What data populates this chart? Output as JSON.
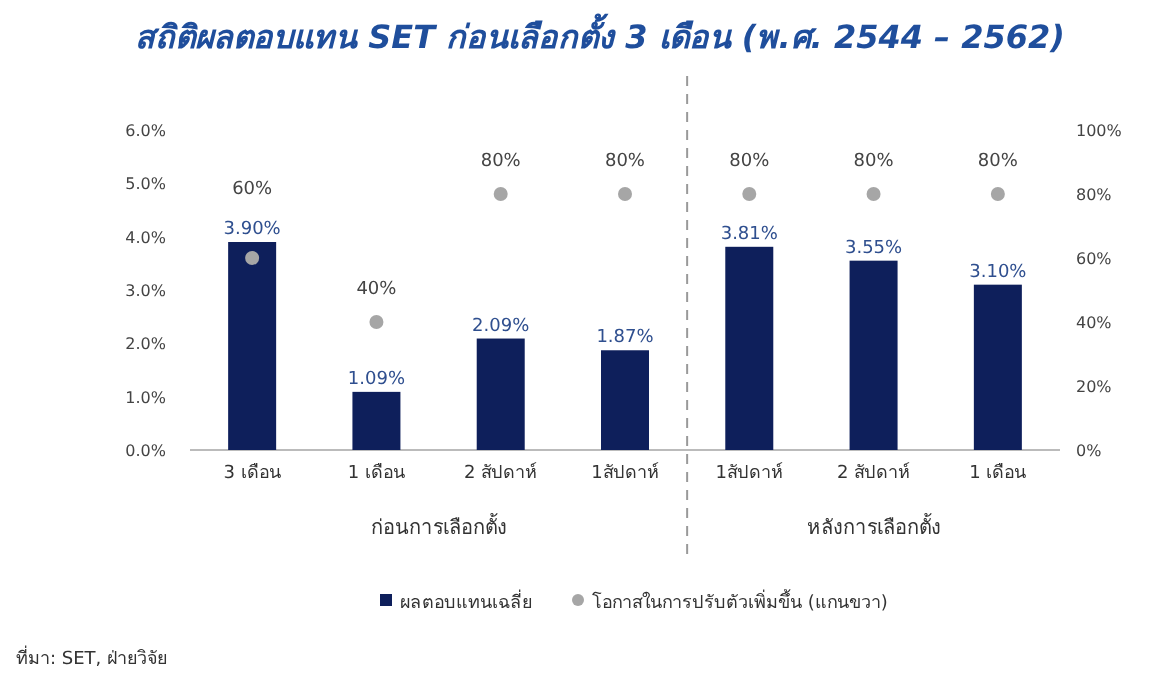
{
  "chart_data": {
    "type": "bar",
    "title": "สถิติผลตอบแทน SET ก่อนเลือกตั้ง 3 เดือน (พ.ศ. 2544 – 2562)",
    "categories": [
      "3 เดือน",
      "1 เดือน",
      "2 สัปดาห์",
      "1สัปดาห์",
      "1สัปดาห์",
      "2 สัปดาห์",
      "1 เดือน"
    ],
    "series": [
      {
        "name": "ผลตอบแทนเฉลี่ย",
        "type": "bar",
        "color": "#0e1f5b",
        "values": [
          3.9,
          1.09,
          2.09,
          1.87,
          3.81,
          3.55,
          3.1
        ],
        "value_labels": [
          "3.90%",
          "1.09%",
          "2.09%",
          "1.87%",
          "3.81%",
          "3.55%",
          "3.10%"
        ]
      },
      {
        "name": "โอกาสในการปรับตัวเพิ่มขึ้น (แกนขวา)",
        "type": "scatter",
        "axis": "y2",
        "color": "#a6a6a6",
        "marker": "circle",
        "values": [
          60,
          40,
          80,
          80,
          80,
          80,
          80
        ],
        "value_labels": [
          "60%",
          "40%",
          "80%",
          "80%",
          "80%",
          "80%",
          "80%"
        ]
      }
    ],
    "ylim": [
      0,
      6
    ],
    "yticks": [
      {
        "value": 0,
        "label": "0.0%"
      },
      {
        "value": 1,
        "label": "1.0%"
      },
      {
        "value": 2,
        "label": "2.0%"
      },
      {
        "value": 3,
        "label": "3.0%"
      },
      {
        "value": 4,
        "label": "4.0%"
      },
      {
        "value": 5,
        "label": "5.0%"
      },
      {
        "value": 6,
        "label": "6.0%"
      }
    ],
    "y2lim": [
      0,
      100
    ],
    "y2ticks": [
      {
        "value": 0,
        "label": "0%"
      },
      {
        "value": 20,
        "label": "20%"
      },
      {
        "value": 40,
        "label": "40%"
      },
      {
        "value": 60,
        "label": "60%"
      },
      {
        "value": 80,
        "label": "80%"
      },
      {
        "value": 100,
        "label": "100%"
      }
    ],
    "annotations": [
      "ก่อนการเลือกตั้ง",
      "หลังการเลือกตั้ง",
      "ที่มา: SET, ฝ่ายวิจัย"
    ],
    "legend": "bottom",
    "grid": false
  }
}
